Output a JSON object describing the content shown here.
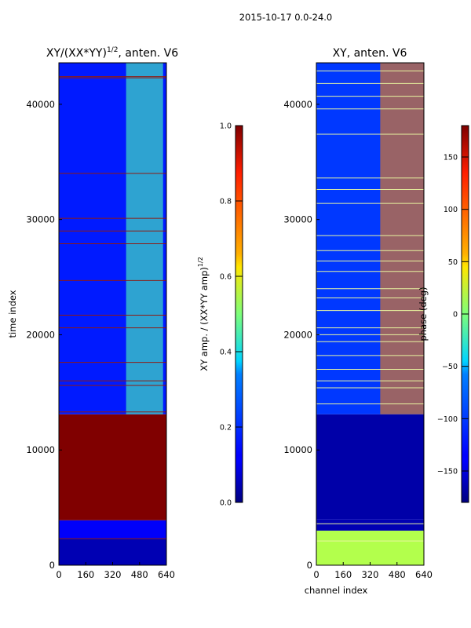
{
  "figure": {
    "suptitle": "2015-10-17 0.0-24.0"
  },
  "chart_data": [
    {
      "type": "heatmap",
      "title_main": "XY/(XX*YY)",
      "title_sup": "1/2",
      "title_tail": ", anten. V6",
      "xlabel": "",
      "ylabel": "time index",
      "xlim": [
        0,
        640
      ],
      "ylim": [
        0,
        43600
      ],
      "xticks": [
        0,
        160,
        320,
        480,
        640
      ],
      "xtick_labels": [
        "0",
        "160",
        "320",
        "480",
        "640"
      ],
      "yticks": [
        0,
        10000,
        20000,
        30000,
        40000
      ],
      "ytick_labels": [
        "0",
        "10000",
        "20000",
        "30000",
        "40000"
      ],
      "colormap": "jet",
      "colorbar": {
        "label_main": "XY amp. / (XX*YY amp)",
        "label_sup": "1/2",
        "min": 0.0,
        "max": 1.0,
        "ticks": [
          0.0,
          0.2,
          0.4,
          0.6,
          0.8,
          1.0
        ],
        "tick_labels": [
          "0.0",
          "0.2",
          "0.4",
          "0.6",
          "0.8",
          "1.0"
        ]
      },
      "regions": [
        {
          "y0": 0,
          "y1": 2300,
          "value": 0.05
        },
        {
          "y0": 2300,
          "y1": 3900,
          "value": 0.12
        },
        {
          "y0": 3900,
          "y1": 13100,
          "value": 1.0
        },
        {
          "y0": 13100,
          "y1": 43600,
          "value": 0.15
        }
      ],
      "active_band": {
        "x0": 400,
        "x1": 620,
        "y0": 13100,
        "y1": 43600,
        "value": 0.45
      },
      "flag_lines": [
        2300,
        13300,
        15600,
        16000,
        17600,
        20600,
        21700,
        24700,
        27900,
        29000,
        30100,
        34000,
        42300,
        42400
      ]
    },
    {
      "type": "heatmap",
      "title": "XY, anten. V6",
      "xlabel": "channel index",
      "ylabel": "",
      "xlim": [
        0,
        640
      ],
      "ylim": [
        0,
        43600
      ],
      "xticks": [
        0,
        160,
        320,
        480,
        640
      ],
      "xtick_labels": [
        "0",
        "160",
        "320",
        "480",
        "640"
      ],
      "yticks": [
        0,
        10000,
        20000,
        30000,
        40000
      ],
      "ytick_labels": [
        "0",
        "10000",
        "20000",
        "30000",
        "40000"
      ],
      "colormap": "jet",
      "colorbar": {
        "label": "phase (deg)",
        "min": -180,
        "max": 180,
        "ticks": [
          -150,
          -100,
          -50,
          0,
          50,
          100,
          150
        ],
        "tick_labels": [
          "−150",
          "−100",
          "−50",
          "0",
          "50",
          "100",
          "150"
        ]
      },
      "regions": [
        {
          "y0": 0,
          "y1": 3000,
          "value": 0.55
        },
        {
          "y0": 3000,
          "y1": 4000,
          "value": 0.05
        },
        {
          "y0": 4000,
          "y1": 13100,
          "value": 0.04
        },
        {
          "y0": 13100,
          "y1": 43600,
          "value": 0.18
        }
      ],
      "active_band": {
        "x0": 380,
        "x1": 640,
        "y0": 13100,
        "y1": 43600,
        "value": 0.75
      },
      "flag_lines": [
        2100,
        3600,
        14000,
        15400,
        16000,
        17000,
        18200,
        19400,
        20000,
        20600,
        22100,
        23200,
        24000,
        25500,
        26400,
        27300,
        28600,
        31400,
        32600,
        33600,
        37400,
        39600,
        40700,
        41800,
        42900
      ]
    }
  ]
}
